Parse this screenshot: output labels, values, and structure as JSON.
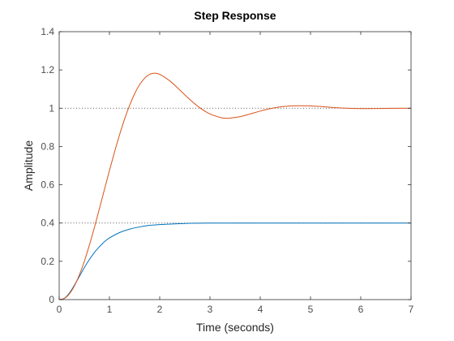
{
  "chart_data": {
    "type": "line",
    "title": "Step Response",
    "xlabel": "Time (seconds)",
    "ylabel": "Amplitude",
    "xlim": [
      0,
      7
    ],
    "ylim": [
      0,
      1.4
    ],
    "xticks": [
      "0",
      "1",
      "2",
      "3",
      "4",
      "5",
      "6",
      "7"
    ],
    "yticks": [
      "0",
      "0.2",
      "0.4",
      "0.6",
      "0.8",
      "1",
      "1.2",
      "1.4"
    ],
    "grid": false,
    "legend": "none",
    "reference_lines": [
      1.0,
      0.4
    ],
    "series": [
      {
        "color": "#0072BD",
        "x": [
          0,
          0.1,
          0.2,
          0.3,
          0.4,
          0.5,
          0.6,
          0.7,
          0.8,
          0.9,
          1.0,
          1.2,
          1.4,
          1.6,
          1.8,
          2.0,
          2.5,
          3.0,
          4.0,
          5.0,
          6.0,
          7.0
        ],
        "y": [
          0,
          0.006,
          0.033,
          0.074,
          0.12,
          0.167,
          0.209,
          0.246,
          0.276,
          0.302,
          0.322,
          0.35,
          0.368,
          0.38,
          0.388,
          0.392,
          0.398,
          0.4,
          0.4,
          0.4,
          0.4,
          0.4
        ]
      },
      {
        "color": "#D95319",
        "x": [
          0,
          0.1,
          0.2,
          0.3,
          0.4,
          0.5,
          0.6,
          0.7,
          0.8,
          0.9,
          1.0,
          1.1,
          1.2,
          1.3,
          1.4,
          1.5,
          1.6,
          1.7,
          1.75,
          1.8,
          1.9,
          2.0,
          2.2,
          2.4,
          2.6,
          2.8,
          3.0,
          3.2,
          3.3,
          3.4,
          3.6,
          3.8,
          4.0,
          4.2,
          4.4,
          4.6,
          4.8,
          5.0,
          5.2,
          5.5,
          6.0,
          6.5,
          7.0
        ],
        "y": [
          0,
          0.006,
          0.029,
          0.07,
          0.128,
          0.2,
          0.284,
          0.376,
          0.475,
          0.575,
          0.674,
          0.77,
          0.86,
          0.942,
          1.014,
          1.075,
          1.123,
          1.157,
          1.168,
          1.177,
          1.183,
          1.177,
          1.143,
          1.095,
          1.045,
          1.002,
          0.97,
          0.952,
          0.948,
          0.948,
          0.956,
          0.97,
          0.985,
          0.998,
          1.007,
          1.012,
          1.013,
          1.012,
          1.009,
          1.003,
          0.998,
          0.999,
          1.0
        ]
      }
    ]
  }
}
